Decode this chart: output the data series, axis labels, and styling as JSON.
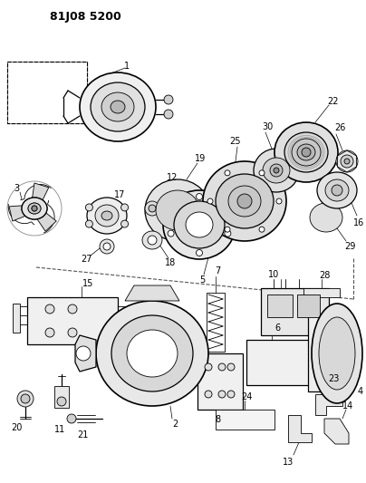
{
  "title": "81J08 5200",
  "bg_color": "#ffffff",
  "title_fontsize": 9,
  "title_fontweight": "bold",
  "fig_width": 4.04,
  "fig_height": 5.33,
  "dpi": 100
}
